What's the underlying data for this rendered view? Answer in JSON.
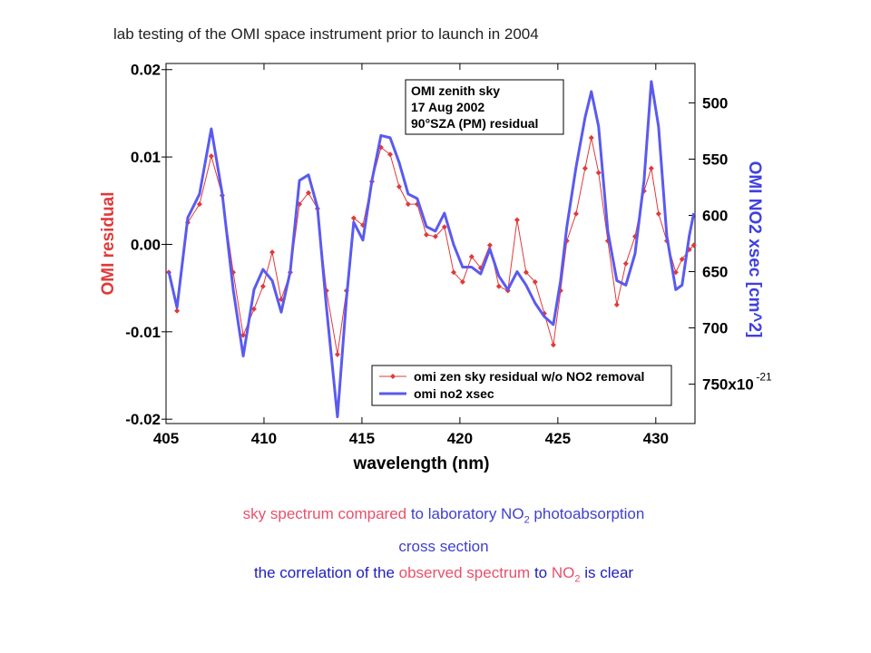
{
  "chart_data": {
    "type": "line",
    "title": "lab testing of the OMI space instrument prior to launch in 2004",
    "xlabel": "wavelength (nm)",
    "ylabel": "OMI residual",
    "y2label": "OMI NO2 xsec [cm^2]",
    "y2_scale_label": {
      "base": "x10",
      "exponent": "-21"
    },
    "annotation": [
      "OMI zenith sky",
      "17 Aug 2002",
      "90°SZA (PM) residual"
    ],
    "legend": "lower right",
    "xlim": [
      405,
      432
    ],
    "xticks": [
      405,
      410,
      415,
      420,
      425,
      430
    ],
    "ylim": [
      -0.0205,
      0.0207
    ],
    "yticks": [
      0.02,
      0.01,
      {
        "value": 0,
        "label": "0.00"
      },
      -0.01,
      -0.02
    ],
    "y2lim": [
      785,
      465
    ],
    "y2ticks": [
      500,
      550,
      600,
      650,
      700,
      750
    ],
    "x": [
      405.14,
      405.56,
      406.11,
      406.71,
      407.31,
      407.87,
      408.43,
      408.94,
      409.49,
      409.95,
      410.42,
      410.88,
      411.34,
      411.81,
      412.27,
      412.73,
      413.19,
      413.75,
      414.21,
      414.58,
      415.05,
      415.51,
      415.97,
      416.44,
      416.9,
      417.36,
      417.82,
      418.29,
      418.75,
      419.21,
      419.68,
      420.14,
      420.6,
      421.06,
      421.53,
      421.99,
      422.45,
      422.92,
      423.38,
      423.84,
      424.31,
      424.77,
      425.14,
      425.46,
      425.93,
      426.39,
      426.71,
      427.08,
      427.55,
      428.01,
      428.47,
      428.94,
      429.4,
      429.77,
      430.14,
      430.56,
      431.02,
      431.34,
      431.71,
      431.94
    ],
    "series": [
      {
        "name": "omi zen sky residual w/o NO2 removal",
        "color": "#e03a3a",
        "axis": "y",
        "marker": true,
        "values": [
          -0.0032,
          -0.0076,
          0.0025,
          0.0046,
          0.0101,
          0.0056,
          -0.0032,
          -0.0104,
          -0.0074,
          -0.0048,
          -0.0009,
          -0.0063,
          -0.0032,
          0.0046,
          0.0059,
          0.0041,
          -0.0053,
          -0.0126,
          -0.0053,
          0.003,
          0.0022,
          0.0072,
          0.0111,
          0.0103,
          0.0066,
          0.0046,
          0.0046,
          0.0011,
          0.0009,
          0.002,
          -0.0032,
          -0.0043,
          -0.0014,
          -0.0027,
          -0.0001,
          -0.0048,
          -0.0053,
          0.0028,
          -0.0032,
          -0.0043,
          -0.0079,
          -0.0115,
          -0.0053,
          0.0004,
          0.0035,
          0.0087,
          0.0122,
          0.0082,
          0.0004,
          -0.0069,
          -0.0022,
          0.0009,
          0.0061,
          0.0087,
          0.0035,
          0.0004,
          -0.0032,
          -0.0017,
          -0.0006,
          -0.0001
        ]
      },
      {
        "name": "omi no2 xsec",
        "color": "#5a5af0",
        "axis": "y2",
        "marker": false,
        "values": [
          650,
          682,
          602,
          581,
          523,
          581,
          666,
          725,
          666,
          648,
          658,
          686,
          650,
          569,
          564,
          593,
          682,
          779,
          674,
          606,
          622,
          569,
          529,
          531,
          553,
          581,
          585,
          610,
          614,
          598,
          626,
          646,
          646,
          652,
          630,
          654,
          666,
          650,
          662,
          678,
          690,
          697,
          658,
          610,
          557,
          513,
          490,
          521,
          614,
          658,
          662,
          634,
          569,
          481,
          521,
          618,
          666,
          662,
          618,
          598
        ]
      }
    ]
  },
  "caption": {
    "lines": [
      [
        {
          "text": "sky spectrum compared",
          "color": "#e8506a"
        },
        {
          "text": " to laboratory NO",
          "color": "#4040d0"
        },
        {
          "text": "2",
          "color": "#4040d0",
          "sub": true
        },
        {
          "text": " photoabsorption",
          "color": "#4040d0"
        }
      ],
      [
        {
          "text": "cross section",
          "color": "#4040d0"
        }
      ],
      [
        {
          "text": "the correlation of the",
          "color": "#2020c0"
        },
        {
          "text": " observed spectrum",
          "color": "#e8506a"
        },
        {
          "text": " to",
          "color": "#2020c0"
        },
        {
          "text": " NO",
          "color": "#e8506a"
        },
        {
          "text": "2",
          "color": "#e8506a",
          "sub": true
        },
        {
          "text": " is clear",
          "color": "#2020c0"
        }
      ]
    ]
  }
}
